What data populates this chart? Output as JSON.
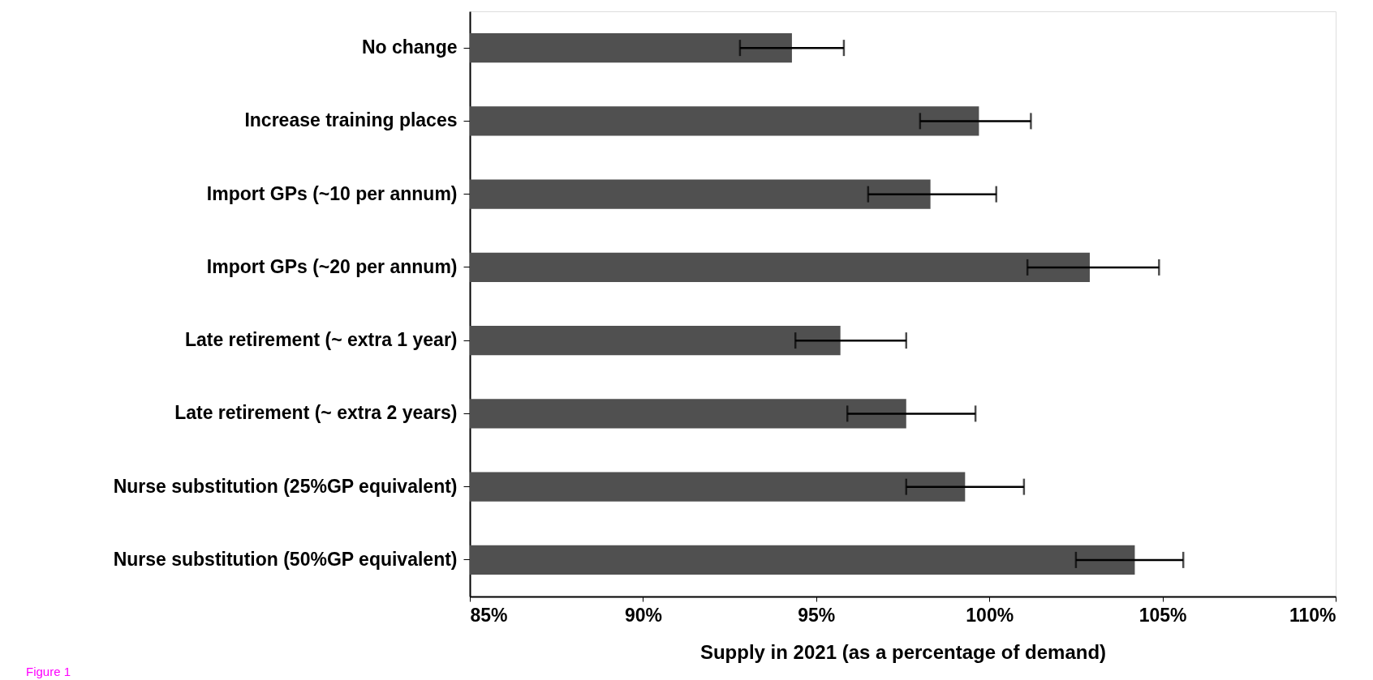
{
  "chart_data": {
    "type": "bar",
    "orientation": "horizontal",
    "xlabel": "Supply in 2021 (as a percentage of demand)",
    "categories": [
      "No change",
      "Increase training places",
      "Import GPs (~10 per annum)",
      "Import GPs (~20 per annum)",
      "Late retirement (~ extra 1 year)",
      "Late retirement (~ extra 2 years)",
      "Nurse substitution (25%GP equivalent)",
      "Nurse substitution (50%GP equivalent)"
    ],
    "values": [
      94.3,
      99.7,
      98.3,
      102.9,
      95.7,
      97.6,
      99.3,
      104.2
    ],
    "errors": [
      [
        92.8,
        95.8
      ],
      [
        98.0,
        101.2
      ],
      [
        96.5,
        100.2
      ],
      [
        101.1,
        104.9
      ],
      [
        94.4,
        97.6
      ],
      [
        95.9,
        99.6
      ],
      [
        97.6,
        101.0
      ],
      [
        102.5,
        105.6
      ]
    ],
    "color": "#505050",
    "xlim": [
      85,
      110
    ],
    "xticks": [
      {
        "value": 85,
        "label": "85%"
      },
      {
        "value": 90,
        "label": "90%"
      },
      {
        "value": 95,
        "label": "95%"
      },
      {
        "value": 100,
        "label": "100%"
      },
      {
        "value": 105,
        "label": "105%"
      },
      {
        "value": 110,
        "label": "110%"
      }
    ],
    "grid": false,
    "annotations": [
      "Figure 1"
    ]
  }
}
